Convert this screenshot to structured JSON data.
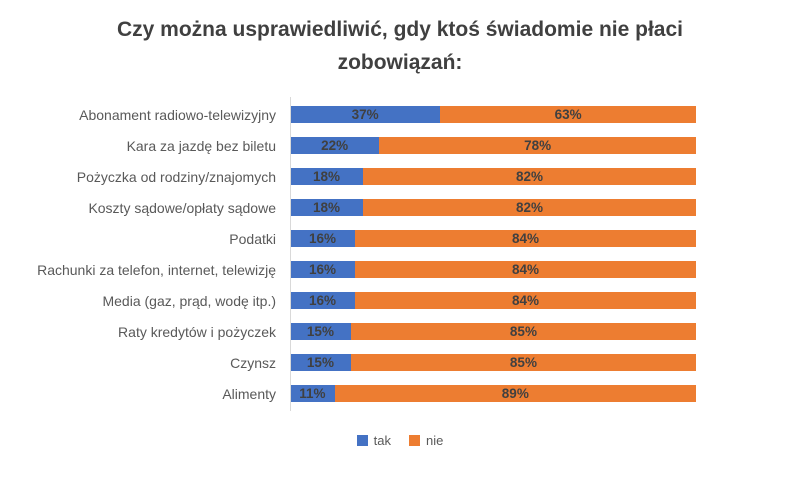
{
  "chart_data": {
    "type": "bar",
    "orientation": "horizontal",
    "stacked": true,
    "title": "Czy można usprawiedliwić, gdy ktoś świadomie nie płaci zobowiązań:",
    "categories": [
      "Abonament radiowo-telewizyjny",
      "Kara za jazdę bez biletu",
      "Pożyczka od rodziny/znajomych",
      "Koszty sądowe/opłaty sądowe",
      "Podatki",
      "Rachunki za telefon, internet, telewizję",
      "Media (gaz, prąd, wodę itp.)",
      "Raty kredytów i pożyczek",
      "Czynsz",
      "Alimenty"
    ],
    "series": [
      {
        "name": "tak",
        "color": "#4472C4",
        "values": [
          37,
          22,
          18,
          18,
          16,
          16,
          16,
          15,
          15,
          11
        ]
      },
      {
        "name": "nie",
        "color": "#ED7D31",
        "values": [
          63,
          78,
          82,
          82,
          84,
          84,
          84,
          85,
          85,
          89
        ]
      }
    ],
    "value_suffix": "%",
    "xlim": [
      0,
      100
    ],
    "legend_position": "bottom",
    "grid": false
  },
  "colors": {
    "title_text": "#404040",
    "category_text": "#595959",
    "value_text": "#404040",
    "axis_line": "#d9d9d9",
    "background": "#ffffff"
  }
}
